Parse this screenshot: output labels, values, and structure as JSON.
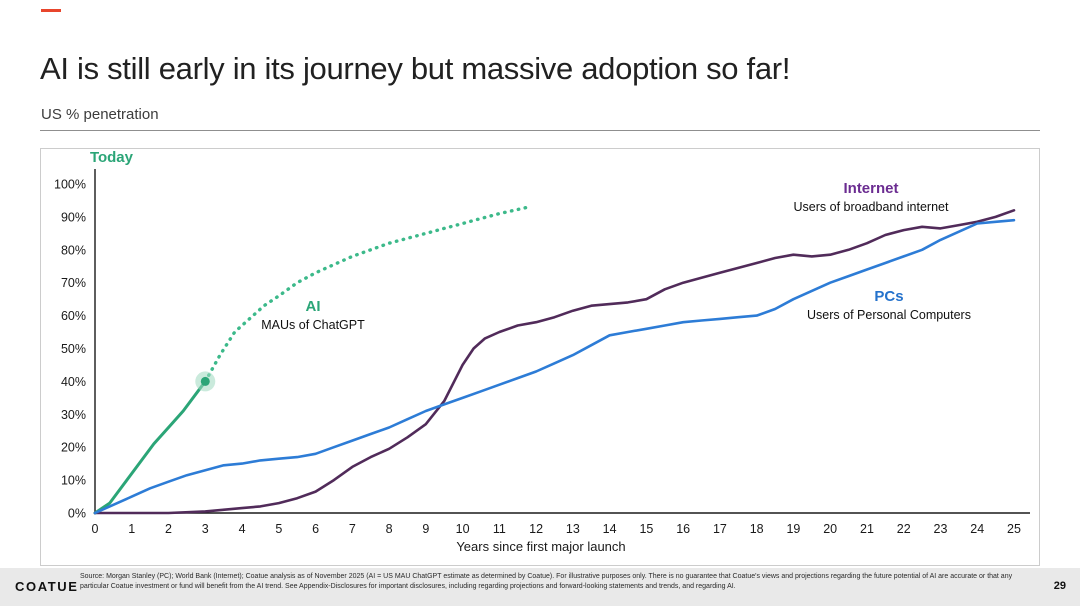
{
  "slide": {
    "title": "AI is still early in its journey but massive adoption so far!",
    "subtitle": "US % penetration",
    "logo": "COATUE",
    "page_number": "29",
    "accent_color": "#e8452c",
    "disclaimer": "Source: Morgan Stanley (PC); World Bank (Internet); Coatue analysis as of November 2025 (AI = US MAU ChatGPT estimate as determined by Coatue). For illustrative purposes only. There is no guarantee that Coatue's views and projections regarding the future potential of AI are accurate or that any particular Coatue investment or fund will benefit from the AI trend. See Appendix-Disclosures for important disclosures, including regarding projections and forward-looking statements and trends, and regarding AI."
  },
  "annotations": {
    "internet": {
      "label": "Internet",
      "sub": "Users of broadband internet",
      "color": "#6b2c91"
    },
    "pcs": {
      "label": "PCs",
      "sub": "Users of Personal Computers",
      "color": "#2472cc"
    },
    "ai": {
      "label": "AI",
      "sub": "MAUs of ChatGPT",
      "color": "#2ba577"
    },
    "today": {
      "label": "Today",
      "color": "#2ba577"
    }
  },
  "chart_data": {
    "type": "line",
    "title": "US % penetration",
    "xlabel": "Years since first major launch",
    "ylabel": "US % penetration",
    "xlim": [
      0,
      25
    ],
    "ylim": [
      0,
      100
    ],
    "grid": false,
    "legend_position": "inline-annotations",
    "x_ticks": [
      0,
      1,
      2,
      3,
      4,
      5,
      6,
      7,
      8,
      9,
      10,
      11,
      12,
      13,
      14,
      15,
      16,
      17,
      18,
      19,
      20,
      21,
      22,
      23,
      24,
      25
    ],
    "y_ticks": [
      0,
      10,
      20,
      30,
      40,
      50,
      60,
      70,
      80,
      90,
      100
    ],
    "series": [
      {
        "name": "AI (MAUs of ChatGPT) - actual",
        "color": "#2ba577",
        "style": "solid",
        "width": 3,
        "points": [
          [
            0,
            0
          ],
          [
            0.4,
            3
          ],
          [
            0.8,
            9
          ],
          [
            1.2,
            15
          ],
          [
            1.6,
            21
          ],
          [
            2,
            26
          ],
          [
            2.4,
            31
          ],
          [
            2.8,
            37
          ],
          [
            3,
            40
          ]
        ]
      },
      {
        "name": "AI (MAUs of ChatGPT) - projection",
        "color": "#3cb98a",
        "style": "dotted",
        "dash": "0.5 6.5",
        "width": 3.4,
        "points": [
          [
            3,
            40
          ],
          [
            3.4,
            48
          ],
          [
            3.8,
            55
          ],
          [
            4.2,
            59
          ],
          [
            4.6,
            63
          ],
          [
            5,
            66
          ],
          [
            5.5,
            70
          ],
          [
            6,
            73
          ],
          [
            6.5,
            75.5
          ],
          [
            7,
            78
          ],
          [
            7.5,
            80
          ],
          [
            8,
            82
          ],
          [
            8.5,
            83.5
          ],
          [
            9,
            85
          ],
          [
            9.5,
            86.5
          ],
          [
            10,
            88
          ],
          [
            10.5,
            89.5
          ],
          [
            11,
            91
          ],
          [
            11.4,
            92
          ],
          [
            11.8,
            93
          ]
        ]
      },
      {
        "name": "Internet (Users of broadband internet)",
        "color": "#512b5a",
        "style": "solid",
        "width": 2.6,
        "points": [
          [
            0,
            0
          ],
          [
            1,
            0
          ],
          [
            2,
            0
          ],
          [
            3,
            0.5
          ],
          [
            4,
            1.5
          ],
          [
            4.5,
            2
          ],
          [
            5,
            3
          ],
          [
            5.5,
            4.5
          ],
          [
            6,
            6.5
          ],
          [
            6.5,
            10
          ],
          [
            7,
            14
          ],
          [
            7.5,
            17
          ],
          [
            8,
            19.5
          ],
          [
            8.5,
            23
          ],
          [
            9,
            27
          ],
          [
            9.5,
            34
          ],
          [
            10,
            45
          ],
          [
            10.3,
            50
          ],
          [
            10.6,
            53
          ],
          [
            11,
            55
          ],
          [
            11.5,
            57
          ],
          [
            12,
            58
          ],
          [
            12.5,
            59.5
          ],
          [
            13,
            61.5
          ],
          [
            13.5,
            63
          ],
          [
            14,
            63.5
          ],
          [
            14.5,
            64
          ],
          [
            15,
            65
          ],
          [
            15.5,
            68
          ],
          [
            16,
            70
          ],
          [
            16.5,
            71.5
          ],
          [
            17,
            73
          ],
          [
            17.5,
            74.5
          ],
          [
            18,
            76
          ],
          [
            18.5,
            77.5
          ],
          [
            19,
            78.5
          ],
          [
            19.5,
            78
          ],
          [
            20,
            78.5
          ],
          [
            20.5,
            80
          ],
          [
            21,
            82
          ],
          [
            21.5,
            84.5
          ],
          [
            22,
            86
          ],
          [
            22.5,
            87
          ],
          [
            23,
            86.5
          ],
          [
            23.5,
            87.5
          ],
          [
            24,
            88.5
          ],
          [
            24.5,
            90
          ],
          [
            25,
            92
          ]
        ]
      },
      {
        "name": "PCs (Users of Personal Computers)",
        "color": "#2d7cd6",
        "style": "solid",
        "width": 2.6,
        "points": [
          [
            0,
            0
          ],
          [
            0.5,
            2.5
          ],
          [
            1,
            5
          ],
          [
            1.5,
            7.5
          ],
          [
            2,
            9.5
          ],
          [
            2.5,
            11.5
          ],
          [
            3,
            13
          ],
          [
            3.5,
            14.5
          ],
          [
            4,
            15
          ],
          [
            4.5,
            16
          ],
          [
            5,
            16.5
          ],
          [
            5.5,
            17
          ],
          [
            6,
            18
          ],
          [
            6.5,
            20
          ],
          [
            7,
            22
          ],
          [
            7.5,
            24
          ],
          [
            8,
            26
          ],
          [
            8.5,
            28.5
          ],
          [
            9,
            31
          ],
          [
            9.5,
            33
          ],
          [
            10,
            35
          ],
          [
            10.5,
            37
          ],
          [
            11,
            39
          ],
          [
            11.5,
            41
          ],
          [
            12,
            43
          ],
          [
            12.5,
            45.5
          ],
          [
            13,
            48
          ],
          [
            13.5,
            51
          ],
          [
            14,
            54
          ],
          [
            14.5,
            55
          ],
          [
            15,
            56
          ],
          [
            15.5,
            57
          ],
          [
            16,
            58
          ],
          [
            16.5,
            58.5
          ],
          [
            17,
            59
          ],
          [
            17.5,
            59.5
          ],
          [
            18,
            60
          ],
          [
            18.5,
            62
          ],
          [
            19,
            65
          ],
          [
            19.5,
            67.5
          ],
          [
            20,
            70
          ],
          [
            20.5,
            72
          ],
          [
            21,
            74
          ],
          [
            21.5,
            76
          ],
          [
            22,
            78
          ],
          [
            22.5,
            80
          ],
          [
            23,
            83
          ],
          [
            23.5,
            85.5
          ],
          [
            24,
            88
          ],
          [
            24.5,
            88.5
          ],
          [
            25,
            89
          ]
        ]
      }
    ],
    "marker": {
      "x": 3,
      "y": 40,
      "label": "Today",
      "color": "#2ba577",
      "halo": "#9fd9bf"
    }
  }
}
